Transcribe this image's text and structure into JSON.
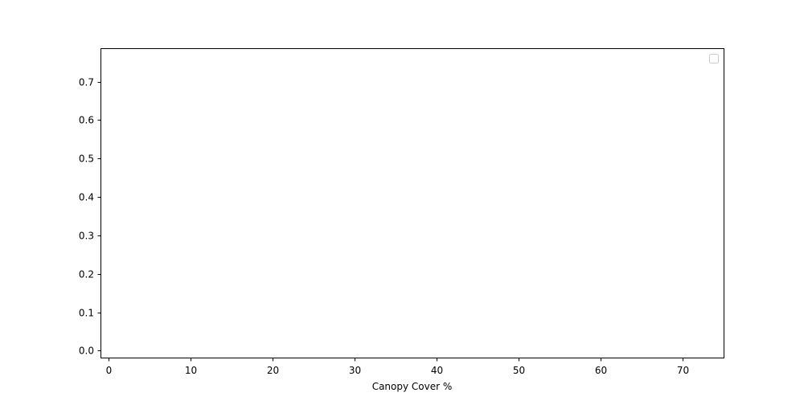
{
  "chart_data": {
    "type": "line",
    "title": "",
    "xlabel": "Canopy Cover %",
    "ylabel": "",
    "xlim": [
      -1,
      75
    ],
    "ylim": [
      -0.018,
      0.787
    ],
    "x_ticks": [
      0,
      10,
      20,
      30,
      40,
      50,
      60,
      70
    ],
    "x_tick_labels": [
      "0",
      "10",
      "20",
      "30",
      "40",
      "50",
      "60",
      "70"
    ],
    "y_ticks": [
      0.0,
      0.1,
      0.2,
      0.3,
      0.4,
      0.5,
      0.6,
      0.7
    ],
    "y_tick_labels": [
      "0.0",
      "0.1",
      "0.2",
      "0.3",
      "0.4",
      "0.5",
      "0.6",
      "0.7"
    ],
    "series": [],
    "grid": false,
    "legend": {
      "placement": "top-right",
      "entries": []
    }
  }
}
